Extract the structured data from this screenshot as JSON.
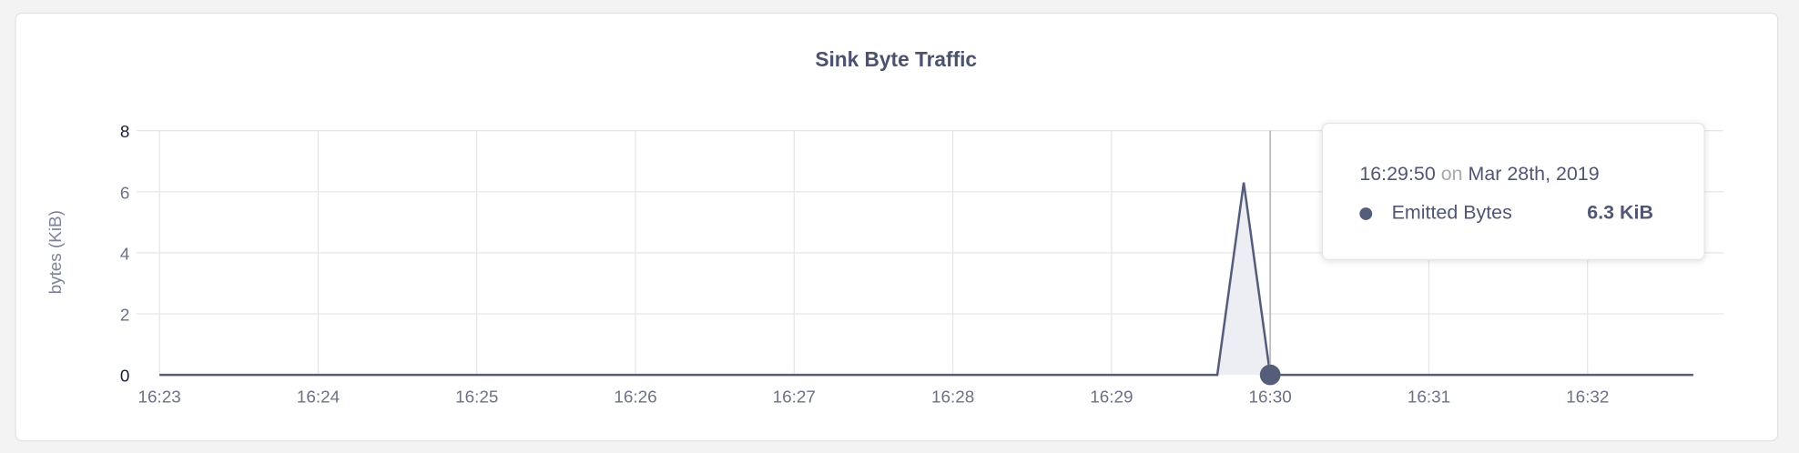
{
  "chart_data": {
    "type": "area",
    "title": "Sink Byte Traffic",
    "ylabel": "bytes (KiB)",
    "xlabel": "",
    "ylim": [
      0,
      8
    ],
    "yticks": [
      "0",
      "2",
      "4",
      "6",
      "8"
    ],
    "xticks": [
      "16:23",
      "16:24",
      "16:25",
      "16:26",
      "16:27",
      "16:28",
      "16:29",
      "16:30",
      "16:31",
      "16:32"
    ],
    "xrange": [
      "16:23:00",
      "16:32:40"
    ],
    "grid": true,
    "series": [
      {
        "name": "Emitted Bytes",
        "color": "#545d7a",
        "fill": "#eceef3",
        "x": [
          "16:23:00",
          "16:29:40",
          "16:29:50",
          "16:30:00",
          "16:32:40"
        ],
        "values": [
          0,
          0,
          6.3,
          0,
          0
        ]
      }
    ],
    "hover_time": "16:30:00"
  },
  "tooltip": {
    "time": "16:29:50",
    "on": "on",
    "date": "Mar 28th, 2019",
    "series_name": "Emitted Bytes",
    "value": "6.3 KiB"
  }
}
